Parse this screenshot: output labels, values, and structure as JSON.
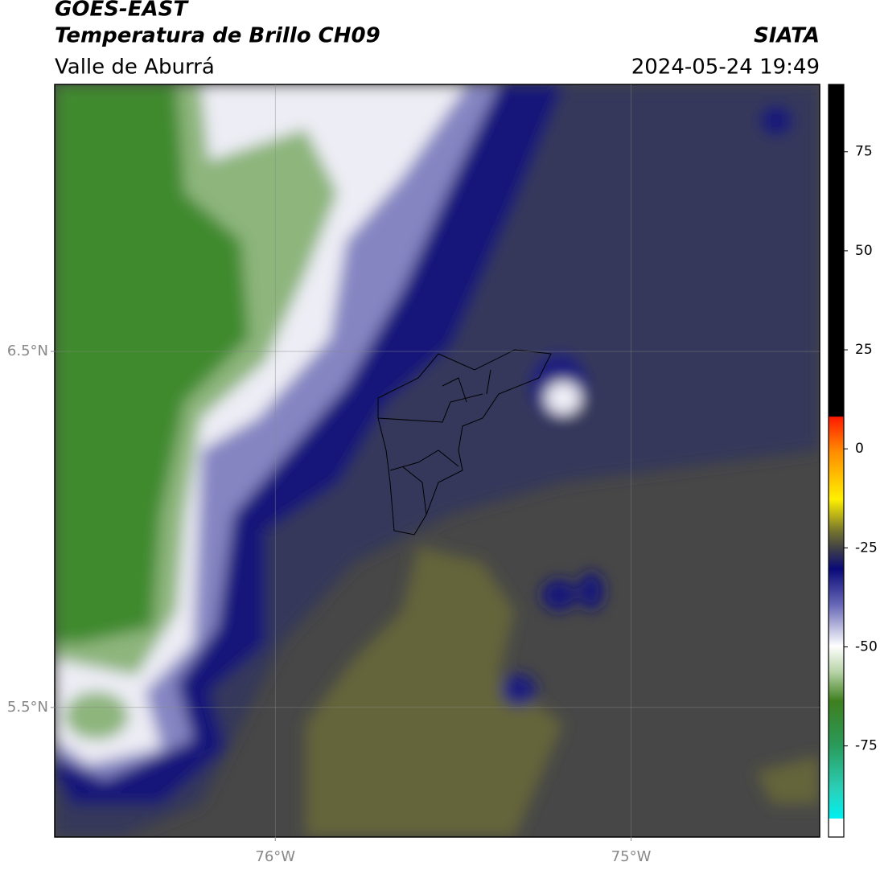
{
  "header": {
    "title": "GOES-EAST",
    "subtitle": "Temperatura de Brillo CH09",
    "region": "Valle de Aburrá",
    "source": "SIATA",
    "datetime": "2024-05-24 19:49"
  },
  "map": {
    "xlim": [
      -76.62,
      -74.47
    ],
    "ylim": [
      5.136,
      7.25
    ],
    "xticks": [
      {
        "value": -76,
        "label": "76°W"
      },
      {
        "value": -75,
        "label": "75°W"
      }
    ],
    "yticks": [
      {
        "value": 6.5,
        "label": "6.5°N"
      },
      {
        "value": 5.5,
        "label": "5.5°N"
      }
    ],
    "grid": true
  },
  "colorbar": {
    "clim": [
      -98,
      92
    ],
    "ticks": [
      75,
      50,
      25,
      0,
      -25,
      -50,
      -75
    ]
  }
}
